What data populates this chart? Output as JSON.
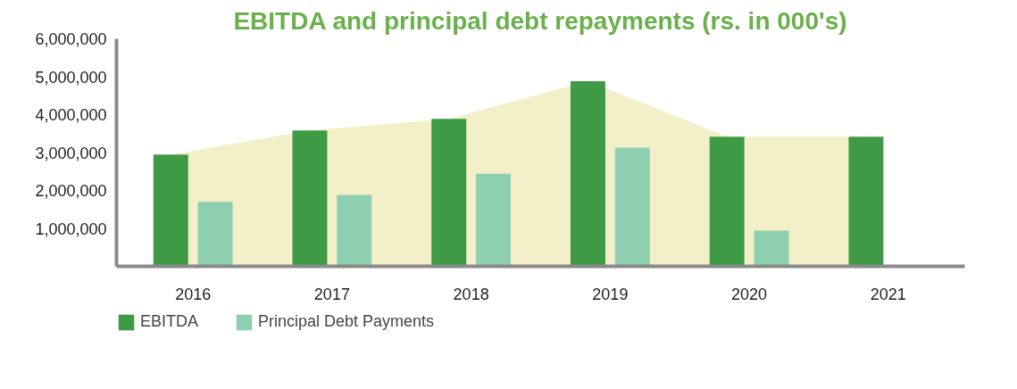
{
  "chart_data": {
    "type": "bar",
    "title": "EBITDA and principal debt repayments (rs. in 000's)",
    "categories": [
      "2016",
      "2017",
      "2018",
      "2019",
      "2020",
      "2021"
    ],
    "series": [
      {
        "type": "area",
        "color": "#f3efc8",
        "values": [
          2950000,
          3580000,
          3890000,
          4880000,
          3420000,
          3420000
        ]
      },
      {
        "name": "EBITDA",
        "color": "#3f9a45",
        "values": [
          2950000,
          3580000,
          3890000,
          4880000,
          3420000,
          3420000
        ]
      },
      {
        "name": "Principal Debt Payments",
        "color": "#8ecfb0",
        "values": [
          1700000,
          1880000,
          2440000,
          3130000,
          940000,
          null
        ]
      }
    ],
    "ylim": [
      0,
      6000000
    ],
    "yticks": [
      {
        "value": 1000000,
        "label": "1,000,000"
      },
      {
        "value": 2000000,
        "label": "2,000,000"
      },
      {
        "value": 3000000,
        "label": "3,000,000"
      },
      {
        "value": 4000000,
        "label": "4,000,000"
      },
      {
        "value": 5000000,
        "label": "5,000,000"
      },
      {
        "value": 6000000,
        "label": "6,000,000"
      }
    ],
    "grid": false,
    "legend": "bottom left"
  }
}
